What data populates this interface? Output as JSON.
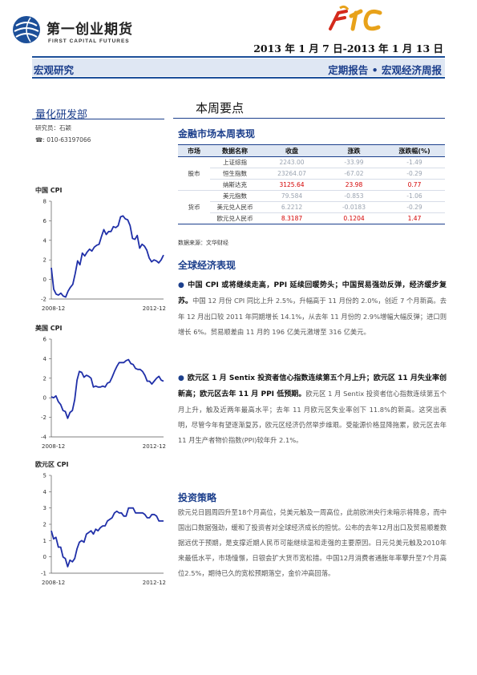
{
  "header": {
    "logo_cn": "第一创业期货",
    "logo_en": "FIRST CAPITAL FUTURES",
    "date_range": "2013 年 1 月 7 日-2013 年 1 月 13 日",
    "section_left": "宏观研究",
    "section_right": "定期报告 • 宏观经济周报",
    "brand_color": "#1c3f8c"
  },
  "sidebar": {
    "dept": "量化研发部",
    "researcher": "研究员：石颖",
    "phone": "☎: 010-63197066",
    "charts": [
      {
        "title": "中国 CPI",
        "yticks": [
          "8",
          "6",
          "4",
          "2",
          "0",
          "-2"
        ],
        "ylim": [
          -2,
          8
        ],
        "xlabels": [
          "2008-12",
          "2012-12"
        ],
        "values": [
          1.2,
          -1.0,
          -1.5,
          -1.6,
          -1.4,
          -1.7,
          -1.8,
          -1.2,
          -0.8,
          -0.5,
          0.6,
          1.9,
          1.5,
          2.7,
          2.4,
          2.8,
          3.1,
          2.9,
          3.3,
          3.5,
          3.6,
          4.4,
          5.1,
          4.6,
          4.9,
          4.9,
          5.4,
          5.3,
          5.5,
          6.4,
          6.5,
          6.2,
          6.1,
          5.5,
          4.2,
          4.1,
          4.5,
          3.2,
          3.6,
          3.4,
          3.0,
          2.2,
          1.8,
          2.0,
          1.9,
          1.7,
          2.0,
          2.5
        ]
      },
      {
        "title": "美国 CPI",
        "yticks": [
          "6",
          "4",
          "2",
          "0",
          "-2",
          "-4"
        ],
        "ylim": [
          -4,
          6
        ],
        "xlabels": [
          "2008-12",
          "2012-12"
        ],
        "values": [
          0.1,
          0.0,
          0.2,
          -0.4,
          -0.7,
          -1.3,
          -1.4,
          -2.1,
          -1.5,
          -1.3,
          -0.2,
          1.8,
          2.7,
          2.6,
          2.1,
          2.3,
          2.2,
          2.0,
          1.1,
          1.2,
          1.1,
          1.1,
          1.2,
          1.1,
          1.5,
          1.6,
          2.1,
          2.7,
          3.2,
          3.6,
          3.6,
          3.6,
          3.8,
          3.9,
          3.5,
          3.4,
          3.0,
          2.9,
          2.9,
          2.7,
          2.3,
          1.7,
          1.7,
          1.4,
          1.7,
          2.0,
          2.2,
          1.8,
          1.7
        ]
      },
      {
        "title": "欧元区 CPI",
        "yticks": [
          "5",
          "4",
          "3",
          "2",
          "1",
          "0",
          "-1"
        ],
        "ylim": [
          -1,
          5
        ],
        "xlabels": [
          "2008-12",
          "2012-12"
        ],
        "values": [
          1.6,
          1.1,
          1.2,
          0.6,
          0.6,
          0.0,
          -0.1,
          -0.6,
          -0.2,
          -0.3,
          -0.1,
          0.5,
          0.9,
          1.0,
          0.9,
          1.4,
          1.5,
          1.6,
          1.4,
          1.7,
          1.6,
          1.8,
          1.9,
          1.9,
          2.2,
          2.3,
          2.4,
          2.7,
          2.8,
          2.7,
          2.7,
          2.5,
          2.5,
          3.0,
          3.0,
          3.0,
          2.7,
          2.7,
          2.7,
          2.7,
          2.6,
          2.4,
          2.4,
          2.6,
          2.6,
          2.5,
          2.2,
          2.2,
          2.2
        ]
      }
    ]
  },
  "main": {
    "title": "本周要点",
    "market_title": "金融市场本周表现",
    "table": {
      "headers": [
        "市场",
        "数据名称",
        "收盘",
        "涨跌",
        "涨跌幅(%)"
      ],
      "rows": [
        {
          "name": "上证综指",
          "close": "2243.00",
          "chg": "-33.99",
          "pct": "-1.49",
          "red": false
        },
        {
          "name": "恒生指数",
          "close": "23264.07",
          "chg": "-67.02",
          "pct": "-0.29",
          "red": false
        },
        {
          "name": "纳斯达克",
          "close": "3125.64",
          "chg": "23.98",
          "pct": "0.77",
          "red": true
        },
        {
          "name": "美元指数",
          "close": "79.584",
          "chg": "-0.853",
          "pct": "-1.06",
          "red": false
        },
        {
          "name": "美元兑人民币",
          "close": "6.2212",
          "chg": "-0.0183",
          "pct": "-0.29",
          "red": false
        },
        {
          "name": "欧元兑人民币",
          "close": "8.3187",
          "chg": "0.1204",
          "pct": "1.47",
          "red": true
        }
      ],
      "group_stock": "股市",
      "group_fx": "货币"
    },
    "source": "数据来源：文华财经",
    "global_title": "全球经济表现",
    "bullet1_bold": "中国 CPI 或将继续走高，PPI 延续回暖势头；中国贸易强劲反弹，经济缓步复苏。",
    "bullet1_text": "中国 12 月份 CPI 同比上升 2.5%，升幅高于 11 月份的 2.0%，创近 7 个月新高。去年 12 月出口较 2011 年同期增长 14.1%，从去年 11 月份的 2.9%增幅大幅反弹；进口则增长 6%。贸易顺差由 11 月的 196 亿美元激增至 316 亿美元。",
    "bullet2_bold": "欧元区 1 月 Sentix 投资者信心指数连续第五个月上升；欧元区 11 月失业率创新高；欧元区去年 11 月 PPI 低预期。",
    "bullet2_text": "欧元区 1 月 Sentix 投资者信心指数连续第五个月上升，触及近两年最高水平；去年 11 月欧元区失业率创下 11.8%的新高。这突出表明，尽管今年有望逐渐复苏，欧元区经济仍然举步维艰。受能源价格显降拖累，欧元区去年 11 月生产者物价指数(PPI)较年升 2.1%。",
    "strategy_title": "投资策略",
    "strategy_text": "欧元兑日圆周四升至18个月高位，兑美元触及一周高位，此前欧洲央行未暗示将降息，而中国出口数据强劲，缓和了投资者对全球经济成长的担忧。公布的去年12月出口及贸易顺差数据远优于预期，是支撑近期人民币可能继续温和走强的主要原因。日元兑美元触及2010年来最低水平，市场憧憬，日银会扩大货币宽松措。中国12月消费者通胀年率攀升至7个月高位2.5%，期待已久的宽松预期落空，金价冲高回落。"
  }
}
